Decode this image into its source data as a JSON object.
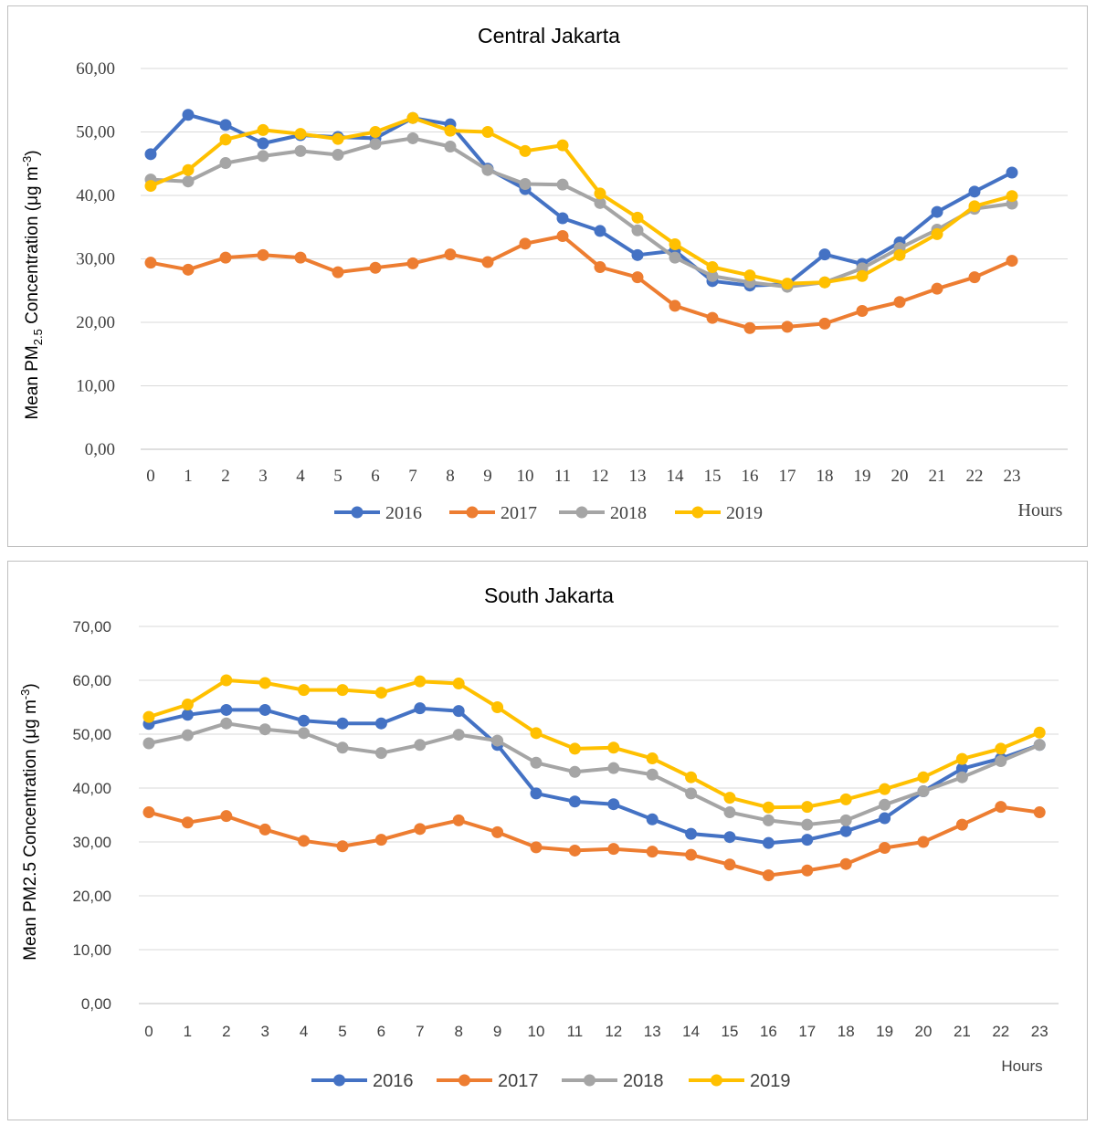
{
  "chart_data": [
    {
      "type": "line",
      "title": "Central Jakarta",
      "ylabel_main": "Mean PM",
      "ylabel_sub": "2.5",
      "ylabel_rest": " Concentration (μg m",
      "ylabel_sup": "-3",
      "ylabel_end": ")",
      "xlabel": "Hours",
      "ylim": [
        0,
        60
      ],
      "ytick_step": 10,
      "ytick_labels": [
        "0,00",
        "10,00",
        "20,00",
        "30,00",
        "40,00",
        "50,00",
        "60,00"
      ],
      "categories": [
        "0",
        "1",
        "2",
        "3",
        "4",
        "5",
        "6",
        "7",
        "8",
        "9",
        "10",
        "11",
        "12",
        "13",
        "14",
        "15",
        "16",
        "17",
        "18",
        "19",
        "20",
        "21",
        "22",
        "23"
      ],
      "grid": true,
      "legend_position": "bottom",
      "series": [
        {
          "name": "2016",
          "color": "#4472C4",
          "values": [
            46.5,
            52.7,
            51.1,
            48.2,
            49.5,
            49.2,
            49.0,
            52.2,
            51.2,
            44.2,
            41.0,
            36.4,
            34.4,
            30.6,
            31.3,
            26.5,
            25.8,
            26.0,
            30.7,
            29.2,
            32.6,
            37.4,
            40.6,
            43.6
          ]
        },
        {
          "name": "2017",
          "color": "#ED7D31",
          "values": [
            29.4,
            28.3,
            30.2,
            30.6,
            30.2,
            27.9,
            28.6,
            29.3,
            30.7,
            29.5,
            32.4,
            33.6,
            28.7,
            27.1,
            22.6,
            20.7,
            19.1,
            19.3,
            19.8,
            21.8,
            23.2,
            25.3,
            27.1,
            29.7
          ]
        },
        {
          "name": "2018",
          "color": "#A5A5A5",
          "values": [
            42.5,
            42.2,
            45.1,
            46.2,
            47.0,
            46.4,
            48.1,
            49.0,
            47.7,
            44.0,
            41.8,
            41.7,
            38.8,
            34.5,
            30.2,
            27.3,
            26.3,
            25.6,
            26.3,
            28.5,
            31.7,
            34.6,
            37.9,
            38.7
          ]
        },
        {
          "name": "2019",
          "color": "#FFC000",
          "values": [
            41.5,
            44.0,
            48.8,
            50.3,
            49.7,
            48.9,
            50.0,
            52.2,
            50.2,
            50.0,
            47.0,
            47.9,
            40.3,
            36.5,
            32.3,
            28.7,
            27.4,
            26.1,
            26.3,
            27.3,
            30.6,
            33.9,
            38.3,
            39.9
          ]
        }
      ]
    },
    {
      "type": "line",
      "title": "South Jakarta",
      "ylabel_main": "Mean PM2.5 Concentration (μg m",
      "ylabel_sup": "-3",
      "ylabel_end": ")",
      "xlabel": "Hours",
      "ylim": [
        0,
        70
      ],
      "ytick_step": 10,
      "ytick_labels": [
        "0,00",
        "10,00",
        "20,00",
        "30,00",
        "40,00",
        "50,00",
        "60,00",
        "70,00"
      ],
      "categories": [
        "0",
        "1",
        "2",
        "3",
        "4",
        "5",
        "6",
        "7",
        "8",
        "9",
        "10",
        "11",
        "12",
        "13",
        "14",
        "15",
        "16",
        "17",
        "18",
        "19",
        "20",
        "21",
        "22",
        "23"
      ],
      "grid": true,
      "legend_position": "bottom",
      "series": [
        {
          "name": "2016",
          "color": "#4472C4",
          "values": [
            51.9,
            53.6,
            54.5,
            54.5,
            52.5,
            52.0,
            52.0,
            54.8,
            54.3,
            48.0,
            39.0,
            37.5,
            37.0,
            34.2,
            31.5,
            30.9,
            29.8,
            30.4,
            32.0,
            34.4,
            39.4,
            43.6,
            45.5,
            48.0
          ]
        },
        {
          "name": "2017",
          "color": "#ED7D31",
          "values": [
            35.5,
            33.6,
            34.8,
            32.3,
            30.2,
            29.2,
            30.4,
            32.4,
            34.0,
            31.8,
            29.0,
            28.4,
            28.7,
            28.2,
            27.6,
            25.8,
            23.8,
            24.7,
            25.9,
            28.9,
            30.0,
            33.2,
            36.5,
            35.5
          ]
        },
        {
          "name": "2018",
          "color": "#A5A5A5",
          "values": [
            48.3,
            49.8,
            52.0,
            50.9,
            50.2,
            47.5,
            46.5,
            48.0,
            49.9,
            48.8,
            44.7,
            43.0,
            43.7,
            42.5,
            39.0,
            35.5,
            34.0,
            33.2,
            34.0,
            36.9,
            39.4,
            42.0,
            45.0,
            48.0
          ]
        },
        {
          "name": "2019",
          "color": "#FFC000",
          "values": [
            53.2,
            55.5,
            60.0,
            59.5,
            58.2,
            58.2,
            57.7,
            59.8,
            59.4,
            55.0,
            50.2,
            47.3,
            47.5,
            45.5,
            42.0,
            38.2,
            36.4,
            36.5,
            37.9,
            39.8,
            42.0,
            45.4,
            47.3,
            50.3
          ]
        }
      ]
    }
  ]
}
